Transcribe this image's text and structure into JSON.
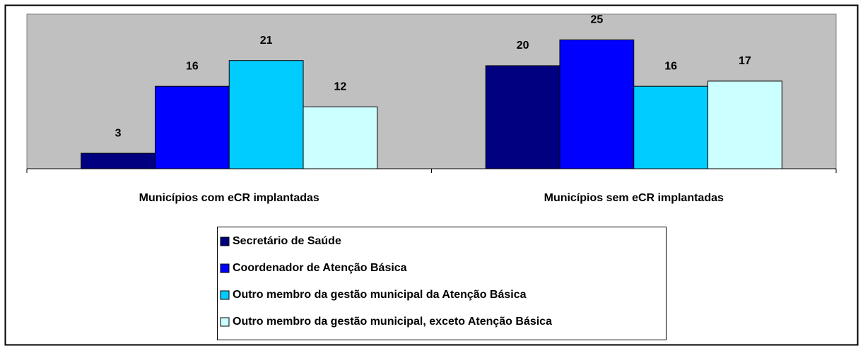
{
  "chart_data": {
    "type": "bar",
    "categories": [
      "Municípios com eCR implantadas",
      "Municípios sem eCR implantadas"
    ],
    "series": [
      {
        "name": "Secretário de Saúde",
        "color": "#000080",
        "values": [
          3,
          20
        ]
      },
      {
        "name": "Coordenador de Atenção Básica",
        "color": "#0000ff",
        "values": [
          16,
          25
        ]
      },
      {
        "name": "Outro membro da gestão municipal da Atenção Básica",
        "color": "#00ccff",
        "values": [
          21,
          16
        ]
      },
      {
        "name": "Outro membro da gestão municipal, exceto Atenção Básica",
        "color": "#ccffff",
        "values": [
          12,
          17
        ]
      }
    ],
    "ylim": [
      0,
      30
    ],
    "legend": "bottom"
  }
}
